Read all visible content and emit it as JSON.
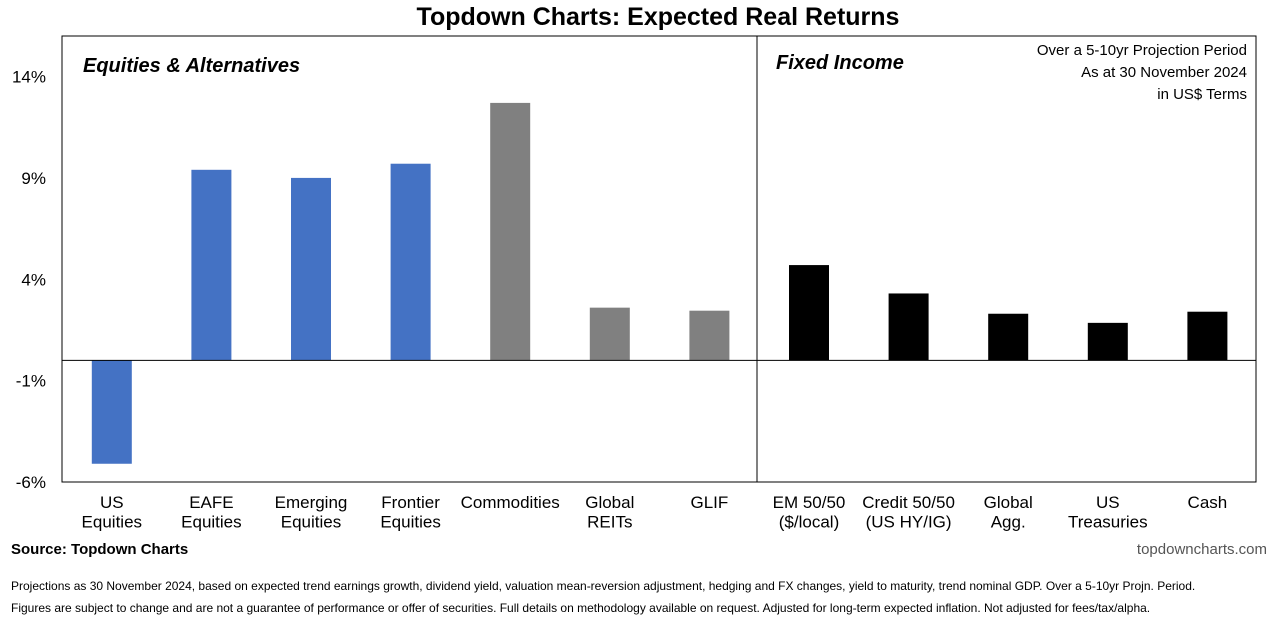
{
  "chart_data": {
    "type": "bar",
    "title": "Topdown Charts: Expected Real Returns",
    "yticks": [
      "-6%",
      "-1%",
      "4%",
      "9%",
      "14%"
    ],
    "ytick_values": [
      -6,
      -1,
      4,
      9,
      14
    ],
    "ylim": [
      -6,
      16
    ],
    "grid": false,
    "panels": [
      {
        "title": "Equities & Alternatives",
        "categories": [
          {
            "lines": [
              "US",
              "Equities"
            ],
            "value": -5.1,
            "color": "#4472C4"
          },
          {
            "lines": [
              "EAFE",
              "Equities"
            ],
            "value": 9.4,
            "color": "#4472C4"
          },
          {
            "lines": [
              "Emerging",
              "Equities"
            ],
            "value": 9.0,
            "color": "#4472C4"
          },
          {
            "lines": [
              "Frontier",
              "Equities"
            ],
            "value": 9.7,
            "color": "#4472C4"
          },
          {
            "lines": [
              "Commodities"
            ],
            "value": 12.7,
            "color": "#808080"
          },
          {
            "lines": [
              "Global",
              "REITs"
            ],
            "value": 2.6,
            "color": "#808080"
          },
          {
            "lines": [
              "GLIF"
            ],
            "value": 2.45,
            "color": "#808080"
          }
        ]
      },
      {
        "title": "Fixed Income",
        "categories": [
          {
            "lines": [
              "EM 50/50",
              "($/local)"
            ],
            "value": 4.7,
            "color": "#000000"
          },
          {
            "lines": [
              "Credit 50/50",
              "(US HY/IG)"
            ],
            "value": 3.3,
            "color": "#000000"
          },
          {
            "lines": [
              "Global",
              "Agg."
            ],
            "value": 2.3,
            "color": "#000000"
          },
          {
            "lines": [
              "US",
              "Treasuries"
            ],
            "value": 1.85,
            "color": "#000000"
          },
          {
            "lines": [
              "Cash"
            ],
            "value": 2.4,
            "color": "#000000"
          }
        ]
      }
    ],
    "note_lines": [
      "Over a 5-10yr Projection Period",
      "As at 30 November 2024",
      "in US$ Terms"
    ]
  },
  "source": "Source: Topdown Charts",
  "website": "topdowncharts.com",
  "disclaimer": [
    "Projections as 30 November 2024, based on expected trend earnings growth, dividend yield, valuation mean-reversion adjustment, hedging and FX changes, yield to maturity, trend nominal GDP. Over a  5-10yr Projn. Period.",
    "Figures are subject to change and are not a guarantee of performance or offer of securities.  Full details on methodology available on request.  Adjusted for long-term expected inflation.  Not adjusted for fees/tax/alpha."
  ]
}
